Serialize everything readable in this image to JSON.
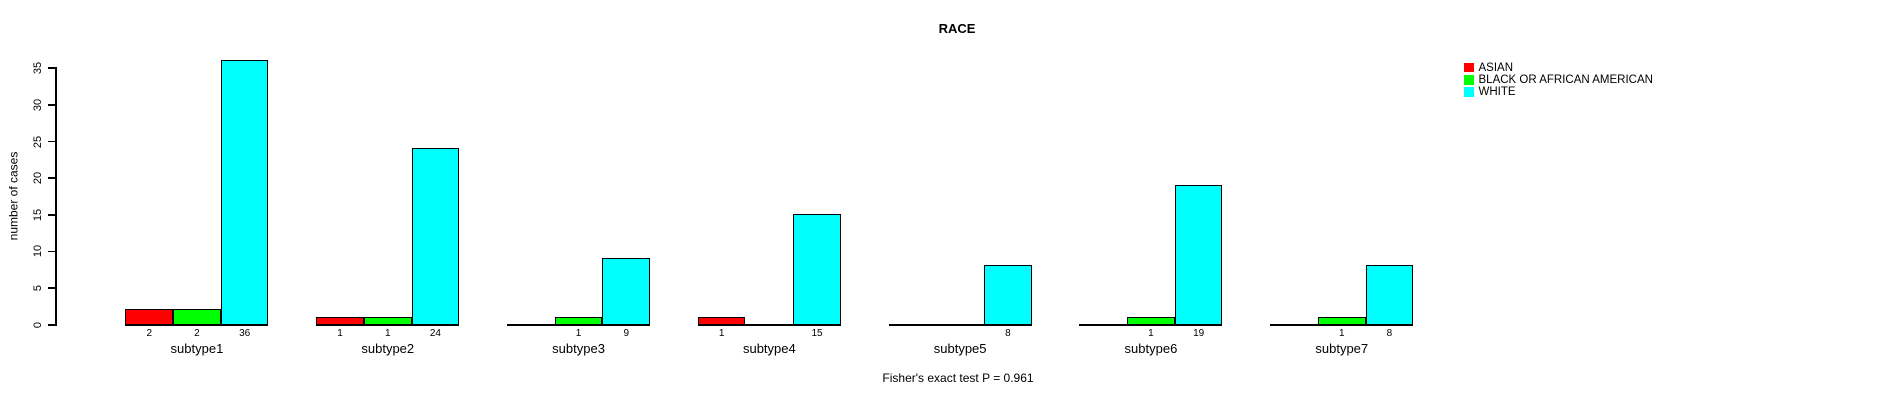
{
  "title": "RACE",
  "y_axis": {
    "label": "number of cases",
    "ticks": [
      0,
      5,
      10,
      15,
      20,
      25,
      30,
      35
    ]
  },
  "footer": "Fisher's exact test P = 0.961",
  "legend": {
    "position": "top-right",
    "items": [
      {
        "label": "ASIAN",
        "color": "#ff0000"
      },
      {
        "label": "BLACK OR AFRICAN AMERICAN",
        "color": "#00ff00"
      },
      {
        "label": "WHITE",
        "color": "#00ffff"
      }
    ]
  },
  "chart_data": {
    "type": "bar",
    "title": "RACE",
    "xlabel": "",
    "ylabel": "number of cases",
    "categories": [
      "subtype1",
      "subtype2",
      "subtype3",
      "subtype4",
      "subtype5",
      "subtype6",
      "subtype7"
    ],
    "series": [
      {
        "name": "ASIAN",
        "color": "#ff0000",
        "values": [
          2,
          1,
          0,
          1,
          0,
          0,
          0
        ]
      },
      {
        "name": "BLACK OR AFRICAN AMERICAN",
        "color": "#00ff00",
        "values": [
          2,
          1,
          1,
          0,
          0,
          1,
          1
        ]
      },
      {
        "name": "WHITE",
        "color": "#00ffff",
        "values": [
          36,
          24,
          9,
          15,
          8,
          19,
          8
        ]
      }
    ],
    "bar_value_labels": "shown under each bar, only when value > 0",
    "ylim": [
      0,
      36
    ],
    "yticks": [
      0,
      5,
      10,
      15,
      20,
      25,
      30,
      35
    ],
    "grid": false,
    "legend_position": "top-right",
    "annotation": "Fisher's exact test P = 0.961",
    "background": "#ffffff",
    "bar_border_color": "#000000"
  }
}
